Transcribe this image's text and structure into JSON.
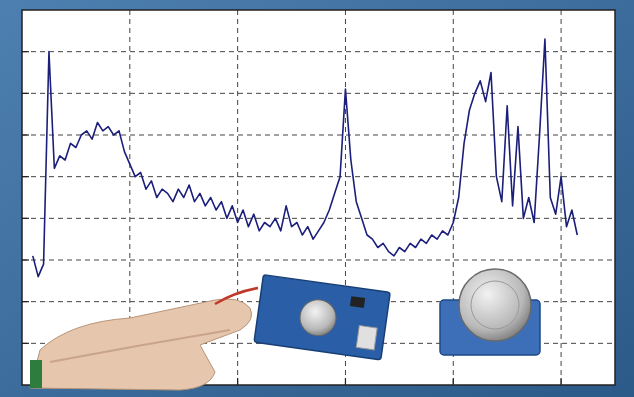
{
  "chart_data": {
    "type": "line",
    "x": [
      0.1,
      0.15,
      0.2,
      0.25,
      0.3,
      0.35,
      0.4,
      0.45,
      0.5,
      0.55,
      0.6,
      0.65,
      0.7,
      0.75,
      0.8,
      0.85,
      0.9,
      0.95,
      1.0,
      1.05,
      1.1,
      1.15,
      1.2,
      1.25,
      1.3,
      1.35,
      1.4,
      1.45,
      1.5,
      1.55,
      1.6,
      1.65,
      1.7,
      1.75,
      1.8,
      1.85,
      1.9,
      1.95,
      2.0,
      2.05,
      2.1,
      2.15,
      2.2,
      2.25,
      2.3,
      2.35,
      2.4,
      2.45,
      2.5,
      2.55,
      2.6,
      2.65,
      2.7,
      2.75,
      2.8,
      2.85,
      2.9,
      2.95,
      3.0,
      3.05,
      3.1,
      3.15,
      3.2,
      3.25,
      3.3,
      3.35,
      3.4,
      3.45,
      3.5,
      3.55,
      3.6,
      3.65,
      3.7,
      3.75,
      3.8,
      3.85,
      3.9,
      3.95,
      4.0,
      4.05,
      4.1,
      4.15,
      4.2,
      4.25,
      4.3,
      4.35,
      4.4,
      4.45,
      4.5,
      4.55,
      4.6,
      4.65,
      4.7,
      4.75,
      4.8,
      4.85,
      4.9,
      4.95,
      5.0,
      5.05,
      5.1,
      5.15
    ],
    "values": [
      3.1,
      2.6,
      2.9,
      8.0,
      5.2,
      5.5,
      5.4,
      5.8,
      5.7,
      6.0,
      6.1,
      5.9,
      6.3,
      6.1,
      6.2,
      6.0,
      6.1,
      5.6,
      5.3,
      5.0,
      5.1,
      4.7,
      4.9,
      4.5,
      4.7,
      4.6,
      4.4,
      4.7,
      4.5,
      4.8,
      4.4,
      4.6,
      4.3,
      4.5,
      4.2,
      4.4,
      4.0,
      4.3,
      3.9,
      4.2,
      3.8,
      4.1,
      3.7,
      3.9,
      3.8,
      4.0,
      3.7,
      4.3,
      3.8,
      3.9,
      3.6,
      3.8,
      3.5,
      3.7,
      3.9,
      4.2,
      4.6,
      5.0,
      7.1,
      5.4,
      4.4,
      4.0,
      3.6,
      3.5,
      3.3,
      3.4,
      3.2,
      3.1,
      3.3,
      3.2,
      3.4,
      3.3,
      3.5,
      3.4,
      3.6,
      3.5,
      3.7,
      3.6,
      3.9,
      4.5,
      5.8,
      6.6,
      7.0,
      7.3,
      6.8,
      7.5,
      5.0,
      4.4,
      6.7,
      4.3,
      6.2,
      4.0,
      4.5,
      3.9,
      6.0,
      8.3,
      4.5,
      4.1,
      5.0,
      3.8,
      4.2,
      3.6
    ],
    "color": "#1c1f7a",
    "xlim": [
      0,
      5.5
    ],
    "ylim": [
      0,
      9
    ],
    "xticks": [
      1,
      2,
      3,
      4,
      5
    ],
    "yticks": [
      1,
      2,
      3,
      4,
      5,
      6,
      7,
      8
    ],
    "grid": true,
    "tick_labels": false
  }
}
